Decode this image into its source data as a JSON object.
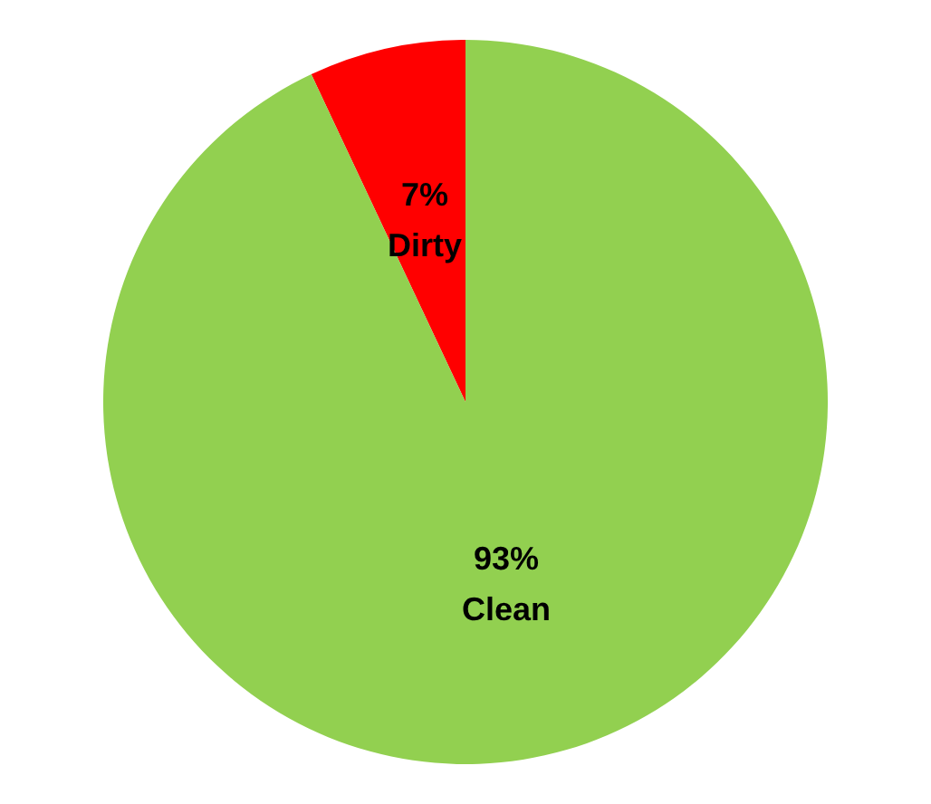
{
  "chart_data": {
    "type": "pie",
    "categories": [
      "Dirty",
      "Clean"
    ],
    "values": [
      7,
      93
    ],
    "colors": [
      "#ff0000",
      "#92d050"
    ],
    "value_labels": [
      "7%",
      "93%"
    ],
    "legend": false
  }
}
